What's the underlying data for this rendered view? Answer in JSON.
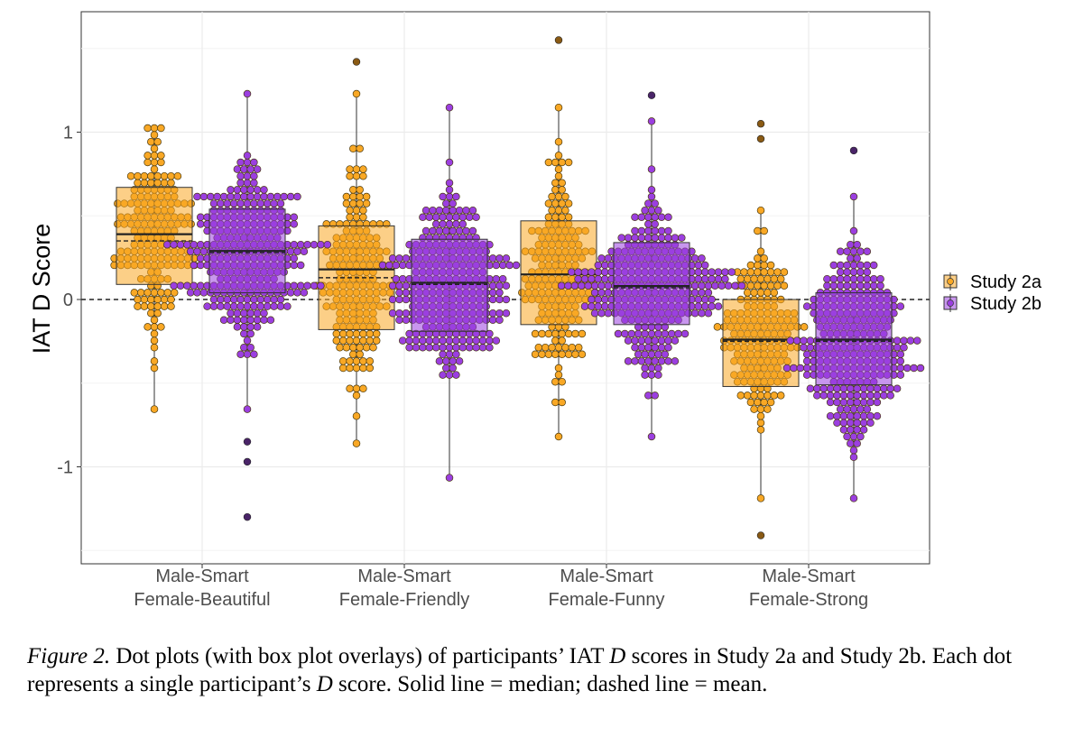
{
  "chart_data": {
    "type": "dot-box",
    "ylabel": "IAT D Score",
    "yticks": [
      -1,
      0,
      1
    ],
    "ylim": [
      -1.57,
      1.72
    ],
    "grid": true,
    "reference_line": {
      "y": 0,
      "style": "dashed"
    },
    "legend": {
      "position": "right",
      "entries": [
        "Study 2a",
        "Study 2b"
      ]
    },
    "colors": {
      "Study 2a": "#f9a825",
      "Study 2b": "#9b3fe0"
    },
    "categories": [
      [
        "Male-Smart",
        "Female-Beautiful"
      ],
      [
        "Male-Smart",
        "Female-Friendly"
      ],
      [
        "Male-Smart",
        "Female-Funny"
      ],
      [
        "Male-Smart",
        "Female-Strong"
      ]
    ],
    "series": [
      {
        "name": "Study 2a",
        "boxes": [
          {
            "q1": 0.09,
            "median": 0.39,
            "q3": 0.67,
            "mean": 0.35,
            "min": -0.67,
            "max": 1.02,
            "n": 180,
            "outliers": []
          },
          {
            "q1": -0.18,
            "median": 0.18,
            "q3": 0.44,
            "mean": 0.13,
            "min": -0.88,
            "max": 1.23,
            "n": 190,
            "outliers": [
              1.42
            ]
          },
          {
            "q1": -0.15,
            "median": 0.15,
            "q3": 0.47,
            "mean": 0.15,
            "min": -0.82,
            "max": 1.15,
            "n": 185,
            "outliers": [
              1.55
            ]
          },
          {
            "q1": -0.52,
            "median": -0.24,
            "q3": 0.0,
            "mean": -0.25,
            "min": -1.2,
            "max": 0.54,
            "n": 180,
            "outliers": [
              1.05,
              0.96,
              -1.41
            ]
          }
        ]
      },
      {
        "name": "Study 2b",
        "boxes": [
          {
            "q1": 0.04,
            "median": 0.29,
            "q3": 0.54,
            "mean": 0.28,
            "min": -0.67,
            "max": 1.22,
            "n": 300,
            "outliers": [
              -0.85,
              -0.97,
              -1.3
            ]
          },
          {
            "q1": -0.19,
            "median": 0.1,
            "q3": 0.36,
            "mean": 0.09,
            "min": -1.06,
            "max": 1.13,
            "n": 300,
            "outliers": []
          },
          {
            "q1": -0.15,
            "median": 0.08,
            "q3": 0.34,
            "mean": 0.07,
            "min": -0.82,
            "max": 1.06,
            "n": 300,
            "outliers": [
              1.22
            ]
          },
          {
            "q1": -0.51,
            "median": -0.24,
            "q3": 0.04,
            "mean": -0.25,
            "min": -1.19,
            "max": 0.62,
            "n": 300,
            "outliers": [
              0.89
            ]
          }
        ]
      }
    ]
  },
  "caption": {
    "label": "Figure 2.",
    "text1": " Dot plots (with box plot overlays) of participants’ IAT ",
    "d1": "D",
    "text2": " scores in Study 2a and Study 2b. Each dot represents a single participant’s ",
    "d2": "D",
    "text3": " score. Solid line = median; dashed line = mean."
  }
}
